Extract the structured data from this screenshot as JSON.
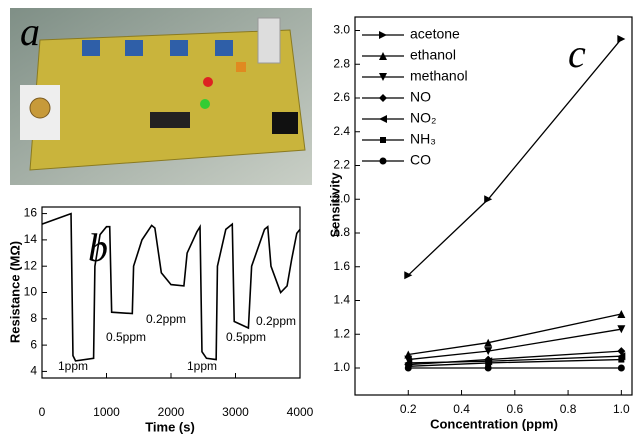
{
  "photo": {
    "label": "a"
  },
  "chart_data": [
    {
      "type": "line",
      "panel_label": "b",
      "x_label": "Time (s)",
      "y_label": "Resistance (MΩ)",
      "color": "#000000",
      "x": [
        0,
        450,
        480,
        520,
        800,
        820,
        900,
        1000,
        1050,
        1080,
        1400,
        1420,
        1550,
        1700,
        1750,
        1850,
        2000,
        2200,
        2250,
        2400,
        2450,
        2480,
        2550,
        2700,
        2720,
        2850,
        2950,
        2980,
        3200,
        3250,
        3450,
        3500,
        3550,
        3700,
        3800,
        3870,
        3950,
        4000
      ],
      "values": [
        15.2,
        16.0,
        5.2,
        4.8,
        5.0,
        12,
        14.4,
        15.0,
        15.0,
        8.5,
        8.4,
        12,
        14,
        15.1,
        14.9,
        11.5,
        10.6,
        10.5,
        13,
        14.6,
        15.0,
        5.5,
        5.0,
        4.9,
        12,
        14.8,
        15.2,
        7.8,
        7.3,
        12,
        14.8,
        15.0,
        12,
        10.0,
        10.5,
        12.5,
        14.5,
        14.8
      ],
      "xlim": [
        0,
        4000
      ],
      "ylim": [
        3.5,
        16.5
      ],
      "xticks": [
        0,
        1000,
        2000,
        3000,
        4000
      ],
      "yticks": [
        4,
        6,
        8,
        10,
        12,
        14,
        16
      ],
      "annotations": [
        "1ppm",
        "0.5ppm",
        "0.2ppm",
        "1ppm",
        "0.5ppm",
        "0.2ppm"
      ]
    },
    {
      "type": "line",
      "panel_label": "c",
      "x_label": "Concentration (ppm)",
      "y_label": "Sensitivity",
      "legend": "upper left",
      "x": [
        0.2,
        0.5,
        1.0
      ],
      "series": [
        {
          "name": "acetone",
          "color": "#000000",
          "marker": "triangle-right",
          "values": [
            1.55,
            2.0,
            2.95
          ]
        },
        {
          "name": "ethanol",
          "color": "#000000",
          "marker": "triangle-up",
          "values": [
            1.08,
            1.15,
            1.32
          ]
        },
        {
          "name": "methanol",
          "color": "#000000",
          "marker": "triangle-down",
          "values": [
            1.05,
            1.1,
            1.23
          ]
        },
        {
          "name": "NO",
          "color": "#000000",
          "marker": "diamond",
          "values": [
            1.02,
            1.05,
            1.1
          ]
        },
        {
          "name": "NO₂",
          "color": "#000000",
          "marker": "triangle-left",
          "values": [
            1.03,
            1.04,
            1.07
          ]
        },
        {
          "name": "NH₃",
          "color": "#000000",
          "marker": "square",
          "values": [
            1.01,
            1.03,
            1.05
          ]
        },
        {
          "name": "CO",
          "color": "#000000",
          "marker": "circle",
          "values": [
            1.0,
            1.0,
            1.0
          ]
        }
      ],
      "xlim": [
        0.0,
        1.04
      ],
      "ylim": [
        0.84,
        3.08
      ],
      "xticks": [
        0.2,
        0.4,
        0.6,
        0.8,
        {
          "value": 1,
          "label": "1.0"
        }
      ],
      "yticks": [
        {
          "value": 1,
          "label": "1.0"
        },
        1.2,
        1.4,
        1.6,
        1.8,
        {
          "value": 2,
          "label": "2.0"
        },
        2.2,
        2.4,
        2.6,
        2.8,
        {
          "value": 3,
          "label": "3.0"
        }
      ]
    }
  ]
}
